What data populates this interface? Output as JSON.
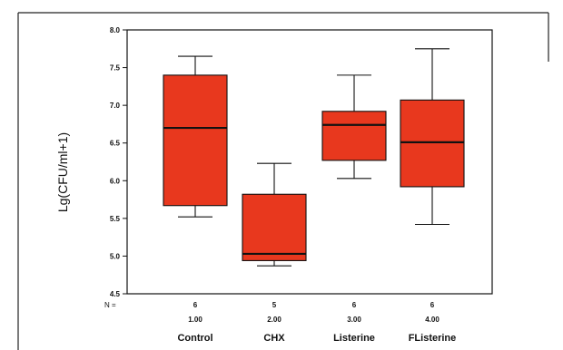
{
  "chart_data": {
    "type": "box",
    "ylabel": "Lg(CFU/ml+1)",
    "ylim": [
      4.5,
      8.0
    ],
    "yticks": [
      "4.5",
      "5.0",
      "5.5",
      "6.0",
      "6.5",
      "7.0",
      "7.5",
      "8.0"
    ],
    "n_label": "N =",
    "box_color": "#e8381e",
    "grid": false,
    "groups": [
      {
        "code": "1.00",
        "name": "Control",
        "n": "6",
        "whisker_low": 5.52,
        "q1": 5.67,
        "median": 6.7,
        "q3": 7.4,
        "whisker_high": 7.65
      },
      {
        "code": "2.00",
        "name": "CHX",
        "n": "5",
        "whisker_low": 4.87,
        "q1": 4.94,
        "median": 5.03,
        "q3": 5.82,
        "whisker_high": 6.23
      },
      {
        "code": "3.00",
        "name": "Listerine",
        "n": "6",
        "whisker_low": 6.03,
        "q1": 6.27,
        "median": 6.74,
        "q3": 6.92,
        "whisker_high": 7.4
      },
      {
        "code": "4.00",
        "name": "FListerine",
        "n": "6",
        "whisker_low": 5.42,
        "q1": 5.92,
        "median": 6.51,
        "q3": 7.07,
        "whisker_high": 7.75
      }
    ]
  }
}
